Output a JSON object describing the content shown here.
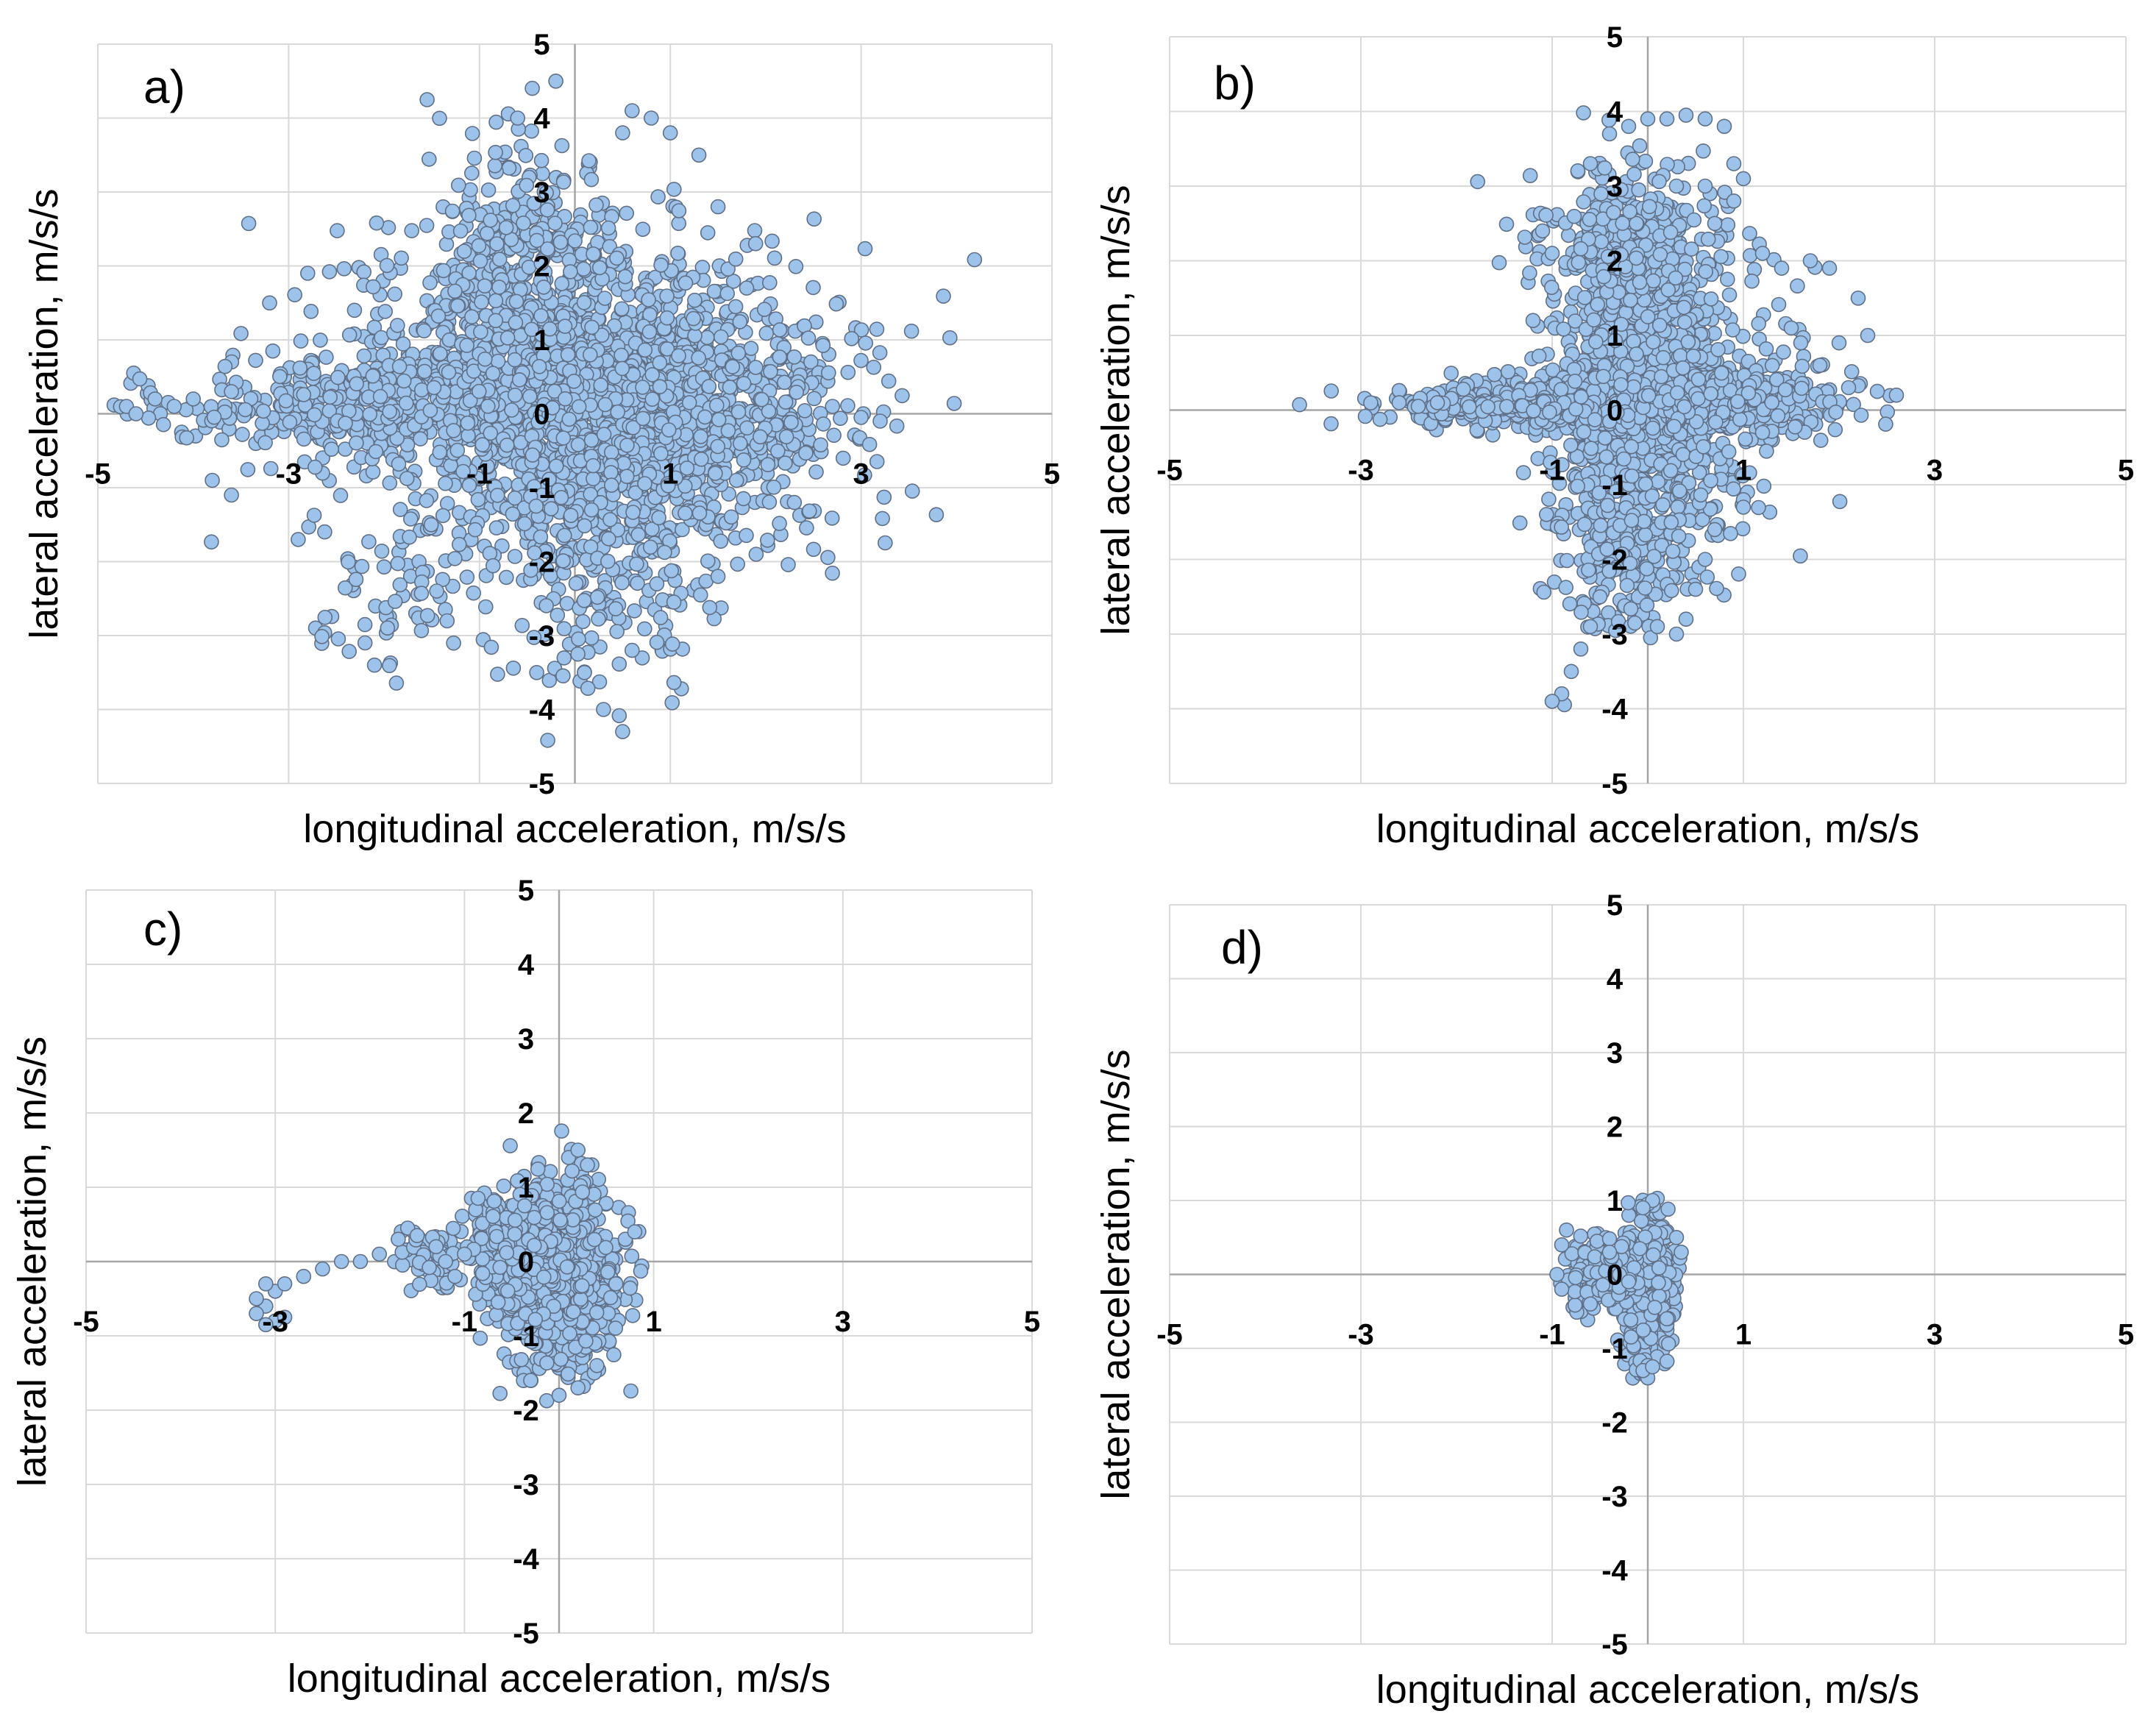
{
  "figure": {
    "panel_count": 4
  },
  "chart_data": [
    {
      "type": "scatter",
      "panel_label": "a)",
      "xlabel": "longitudinal acceleration, m/s/s",
      "ylabel": "lateral acceleration, m/s/s",
      "xlim": [
        -5,
        5
      ],
      "ylim": [
        -5,
        5
      ],
      "x_ticks": [
        -5,
        -3,
        -1,
        1,
        3,
        5
      ],
      "y_ticks": [
        -5,
        -4,
        -3,
        -2,
        -1,
        0,
        1,
        2,
        3,
        4,
        5
      ],
      "grid": true,
      "marker_color": "#9ec3ea",
      "marker_edge": "#5f6f86",
      "clusters": [
        {
          "cx": 0.1,
          "cy": 0.3,
          "sx": 1.2,
          "sy": 1.1,
          "n": 1500
        },
        {
          "cx": -1.6,
          "cy": 0.1,
          "sx": 1.4,
          "sy": 0.35,
          "n": 600
        },
        {
          "cx": 1.3,
          "cy": 0.0,
          "sx": 0.9,
          "sy": 0.6,
          "n": 400
        },
        {
          "cx": -0.6,
          "cy": 2.0,
          "sx": 0.5,
          "sy": 0.9,
          "n": 300
        },
        {
          "cx": 0.3,
          "cy": -1.6,
          "sx": 0.6,
          "sy": 1.0,
          "n": 300
        },
        {
          "cx": -1.9,
          "cy": -2.4,
          "sx": 0.5,
          "sy": 0.5,
          "n": 60
        }
      ],
      "points": [
        [
          -4.7,
          0.1
        ],
        [
          -4.4,
          0.2
        ],
        [
          -4.6,
          0.0
        ],
        [
          -4.2,
          0.1
        ],
        [
          -4.0,
          0.2
        ],
        [
          -3.6,
          0.3
        ],
        [
          3.2,
          -0.1
        ],
        [
          3.0,
          -0.05
        ],
        [
          2.7,
          0.1
        ],
        [
          -0.6,
          4.0
        ],
        [
          -0.2,
          4.5
        ],
        [
          0.6,
          4.1
        ],
        [
          0.8,
          4.0
        ],
        [
          0.5,
          3.8
        ],
        [
          1.3,
          3.5
        ],
        [
          1.0,
          3.8
        ],
        [
          1.5,
          2.8
        ],
        [
          0.5,
          -4.3
        ],
        [
          0.3,
          -4.0
        ],
        [
          0.1,
          -3.5
        ],
        [
          0.6,
          -3.2
        ],
        [
          -0.4,
          -3.5
        ],
        [
          -2.1,
          -3.4
        ],
        [
          -2.2,
          -3.1
        ],
        [
          -2.9,
          -1.7
        ],
        [
          -3.8,
          -0.9
        ],
        [
          -3.6,
          -1.1
        ],
        [
          2.3,
          -1.2
        ],
        [
          1.9,
          -1.9
        ],
        [
          1.5,
          -2.2
        ],
        [
          -2.8,
          1.9
        ],
        [
          -3.2,
          1.5
        ],
        [
          1.8,
          1.7
        ]
      ]
    },
    {
      "type": "scatter",
      "panel_label": "b)",
      "xlabel": "longitudinal acceleration, m/s/s",
      "ylabel": "lateral acceleration, m/s/s",
      "xlim": [
        -5,
        5
      ],
      "ylim": [
        -5,
        5
      ],
      "x_ticks": [
        -5,
        -3,
        -1,
        1,
        3,
        5
      ],
      "y_ticks": [
        -5,
        -4,
        -3,
        -2,
        -1,
        0,
        1,
        2,
        3,
        4,
        5
      ],
      "grid": true,
      "marker_color": "#9ec3ea",
      "marker_edge": "#5f6f86",
      "clusters": [
        {
          "cx": 0.0,
          "cy": 0.3,
          "sx": 0.55,
          "sy": 1.2,
          "n": 1300
        },
        {
          "cx": -0.7,
          "cy": 0.1,
          "sx": 0.9,
          "sy": 0.18,
          "n": 500
        },
        {
          "cx": 0.8,
          "cy": 0.1,
          "sx": 0.6,
          "sy": 0.25,
          "n": 300
        },
        {
          "cx": -1.6,
          "cy": 0.05,
          "sx": 0.5,
          "sy": 0.1,
          "n": 150
        },
        {
          "cx": -0.2,
          "cy": 2.3,
          "sx": 0.35,
          "sy": 0.5,
          "n": 200
        },
        {
          "cx": -0.3,
          "cy": -2.0,
          "sx": 0.3,
          "sy": 0.5,
          "n": 120
        }
      ],
      "points": [
        [
          -0.6,
          3.3
        ],
        [
          -0.4,
          3.7
        ],
        [
          -0.2,
          3.8
        ],
        [
          0.0,
          3.9
        ],
        [
          0.2,
          3.9
        ],
        [
          0.4,
          3.95
        ],
        [
          0.6,
          3.9
        ],
        [
          0.8,
          3.8
        ],
        [
          0.9,
          3.3
        ],
        [
          1.0,
          3.1
        ],
        [
          0.9,
          2.8
        ],
        [
          0.7,
          2.5
        ],
        [
          0.3,
          3.0
        ],
        [
          0.6,
          3.0
        ],
        [
          1.2,
          2.1
        ],
        [
          1.4,
          1.9
        ],
        [
          1.7,
          2.0
        ],
        [
          1.9,
          1.9
        ],
        [
          2.2,
          1.5
        ],
        [
          2.3,
          1.0
        ],
        [
          2.0,
          0.9
        ],
        [
          1.8,
          0.6
        ],
        [
          2.1,
          0.3
        ],
        [
          2.4,
          0.25
        ],
        [
          2.6,
          0.2
        ],
        [
          1.6,
          0.9
        ],
        [
          1.5,
          1.1
        ],
        [
          -2.6,
          0.1
        ],
        [
          -2.4,
          0.05
        ],
        [
          -2.2,
          0.1
        ],
        [
          -0.5,
          -2.5
        ],
        [
          -0.6,
          -2.9
        ],
        [
          -0.7,
          -3.2
        ],
        [
          -0.8,
          -3.5
        ],
        [
          -0.9,
          -3.8
        ],
        [
          -1.0,
          -3.9
        ],
        [
          0.1,
          -2.9
        ],
        [
          0.3,
          -3.0
        ],
        [
          0.4,
          -2.8
        ],
        [
          0.5,
          -2.4
        ],
        [
          0.6,
          -2.0
        ],
        [
          0.7,
          -1.6
        ],
        [
          1.0,
          -1.2
        ],
        [
          -1.1,
          2.4
        ],
        [
          -1.0,
          2.1
        ],
        [
          -1.2,
          1.2
        ],
        [
          1.2,
          -0.3
        ],
        [
          1.0,
          -1.3
        ]
      ]
    },
    {
      "type": "scatter",
      "panel_label": "c)",
      "xlabel": "longitudinal acceleration, m/s/s",
      "ylabel": "lateral acceleration, m/s/s",
      "xlim": [
        -5,
        5
      ],
      "ylim": [
        -5,
        5
      ],
      "x_ticks": [
        -5,
        -3,
        -1,
        1,
        3,
        5
      ],
      "y_ticks": [
        -5,
        -4,
        -3,
        -2,
        -1,
        0,
        1,
        2,
        3,
        4,
        5
      ],
      "grid": true,
      "marker_color": "#9ec3ea",
      "marker_edge": "#5f6f86",
      "clusters": [
        {
          "cx": 0.0,
          "cy": -0.2,
          "sx": 0.3,
          "sy": 0.6,
          "n": 900
        },
        {
          "cx": -0.5,
          "cy": 0.2,
          "sx": 0.25,
          "sy": 0.4,
          "n": 250
        },
        {
          "cx": -1.4,
          "cy": 0.0,
          "sx": 0.15,
          "sy": 0.2,
          "n": 60
        }
      ],
      "points": [
        [
          -3.1,
          -0.6
        ],
        [
          -3.2,
          -0.5
        ],
        [
          -3.0,
          -0.4
        ],
        [
          -3.1,
          -0.3
        ],
        [
          -2.9,
          -0.3
        ],
        [
          -3.2,
          -0.7
        ],
        [
          -3.0,
          -0.8
        ],
        [
          -3.1,
          -0.85
        ],
        [
          -2.9,
          -0.75
        ],
        [
          -2.7,
          -0.2
        ],
        [
          -2.5,
          -0.1
        ],
        [
          -2.3,
          0.0
        ],
        [
          -2.1,
          0.0
        ],
        [
          -1.9,
          0.1
        ],
        [
          -1.7,
          0.3
        ],
        [
          -1.6,
          0.45
        ],
        [
          -1.5,
          0.35
        ],
        [
          -1.3,
          0.2
        ],
        [
          -1.2,
          0.0
        ],
        [
          -1.1,
          -0.2
        ],
        [
          -1.0,
          0.1
        ],
        [
          0.1,
          1.4
        ],
        [
          0.2,
          1.5
        ],
        [
          0.3,
          1.3
        ],
        [
          0.0,
          -1.8
        ],
        [
          -0.3,
          -1.6
        ],
        [
          0.2,
          -1.7
        ],
        [
          0.4,
          -1.4
        ],
        [
          0.7,
          0.3
        ],
        [
          0.8,
          0.4
        ],
        [
          0.6,
          -0.3
        ]
      ]
    },
    {
      "type": "scatter",
      "panel_label": "d)",
      "xlabel": "longitudinal acceleration, m/s/s",
      "ylabel": "lateral acceleration, m/s/s",
      "xlim": [
        -5,
        5
      ],
      "ylim": [
        -5,
        5
      ],
      "x_ticks": [
        -5,
        -3,
        -1,
        1,
        3,
        5
      ],
      "y_ticks": [
        -5,
        -4,
        -3,
        -2,
        -1,
        0,
        1,
        2,
        3,
        4,
        5
      ],
      "grid": true,
      "marker_color": "#9ec3ea",
      "marker_edge": "#5f6f86",
      "clusters": [
        {
          "cx": 0.0,
          "cy": -0.2,
          "sx": 0.12,
          "sy": 0.45,
          "n": 600
        },
        {
          "cx": -0.6,
          "cy": 0.0,
          "sx": 0.12,
          "sy": 0.22,
          "n": 120
        },
        {
          "cx": -0.3,
          "cy": 0.0,
          "sx": 0.1,
          "sy": 0.2,
          "n": 90
        }
      ],
      "points": [
        [
          0.0,
          -1.4
        ],
        [
          -0.05,
          -1.3
        ],
        [
          0.05,
          -1.25
        ],
        [
          0.0,
          0.95
        ],
        [
          0.05,
          1.0
        ],
        [
          -0.05,
          0.9
        ],
        [
          -0.9,
          0.4
        ],
        [
          -0.95,
          0.0
        ],
        [
          -0.9,
          -0.2
        ],
        [
          -0.85,
          0.6
        ],
        [
          -0.6,
          -0.4
        ],
        [
          0.35,
          0.3
        ],
        [
          0.3,
          0.5
        ],
        [
          -0.4,
          0.3
        ],
        [
          -0.2,
          -0.1
        ],
        [
          0.2,
          -0.6
        ]
      ]
    }
  ]
}
